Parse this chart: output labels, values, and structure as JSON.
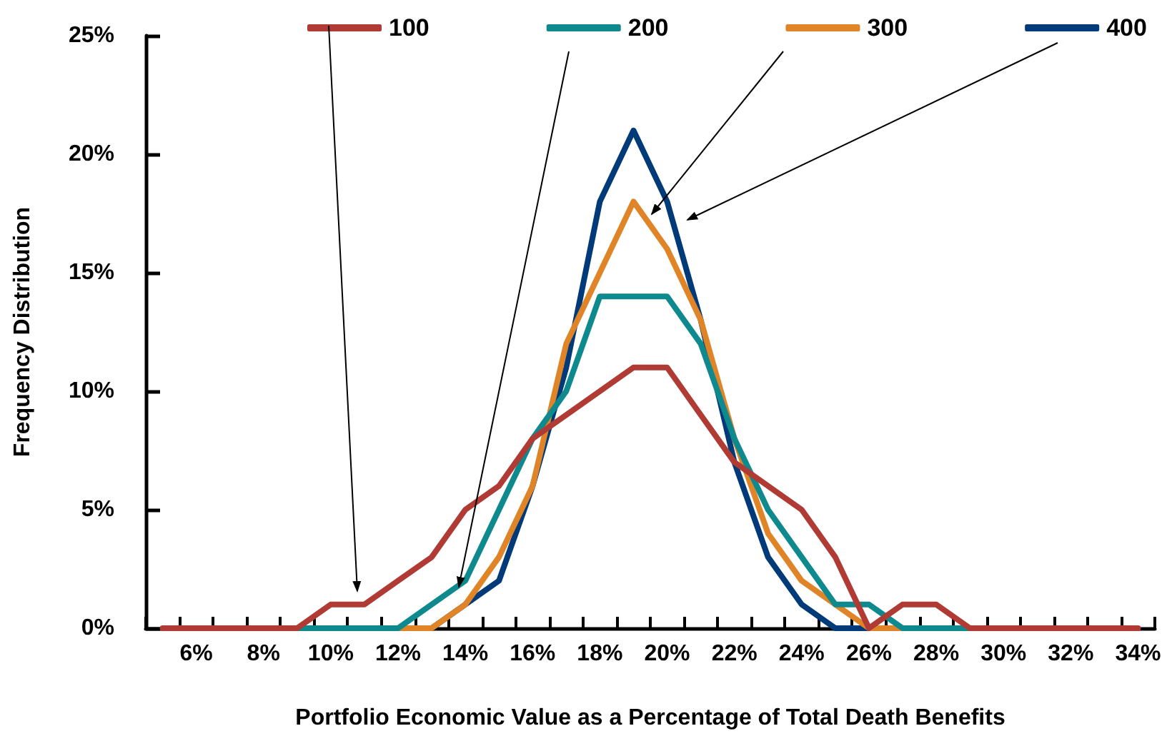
{
  "chart_data": {
    "type": "line",
    "xlabel": "Portfolio Economic Value as a Percentage of Total Death Benefits",
    "ylabel": "Frequency Distribution",
    "categories": [
      null,
      "6%",
      null,
      "8%",
      null,
      "10%",
      null,
      "12%",
      null,
      "14%",
      null,
      "16%",
      null,
      "18%",
      null,
      "20%",
      null,
      "22%",
      null,
      "24%",
      null,
      "26%",
      null,
      "28%",
      null,
      "30%",
      null,
      "32%",
      null,
      "34%"
    ],
    "series": [
      {
        "name": "100",
        "color": "#b03a34",
        "values": [
          0,
          0,
          0,
          0,
          0,
          1,
          1,
          2,
          3,
          5,
          6,
          8,
          9,
          10,
          11,
          11,
          9,
          7,
          6,
          5,
          3,
          0,
          1,
          1,
          0,
          0,
          0,
          0,
          0,
          0
        ]
      },
      {
        "name": "200",
        "color": "#0e8a8f",
        "values": [
          null,
          null,
          null,
          null,
          0,
          0,
          0,
          0,
          1,
          2,
          5,
          8,
          10,
          14,
          14,
          14,
          12,
          8,
          5,
          3,
          1,
          1,
          0,
          0,
          0,
          null,
          null,
          null,
          null,
          null
        ]
      },
      {
        "name": "300",
        "color": "#e08428",
        "values": [
          null,
          null,
          null,
          null,
          null,
          null,
          null,
          0,
          0,
          1,
          3,
          6,
          12,
          15,
          18,
          16,
          13,
          8,
          4,
          2,
          1,
          0,
          0,
          null,
          null,
          null,
          null,
          null,
          null,
          null
        ]
      },
      {
        "name": "400",
        "color": "#003a78",
        "values": [
          null,
          null,
          null,
          null,
          null,
          null,
          null,
          null,
          0,
          1,
          2,
          6,
          11,
          18,
          21,
          18,
          13,
          7,
          3,
          1,
          0,
          0,
          null,
          null,
          null,
          null,
          null,
          null,
          null,
          null
        ]
      }
    ],
    "ylim": [
      0,
      25
    ],
    "yticks": [
      {
        "value": 0,
        "label": "0%"
      },
      {
        "value": 5,
        "label": "5%"
      },
      {
        "value": 10,
        "label": "10%"
      },
      {
        "value": 15,
        "label": "15%"
      },
      {
        "value": 20,
        "label": "20%"
      },
      {
        "value": 25,
        "label": "25%"
      }
    ],
    "grid": false,
    "legend": "top",
    "marker": "none",
    "line_style": "solid"
  }
}
